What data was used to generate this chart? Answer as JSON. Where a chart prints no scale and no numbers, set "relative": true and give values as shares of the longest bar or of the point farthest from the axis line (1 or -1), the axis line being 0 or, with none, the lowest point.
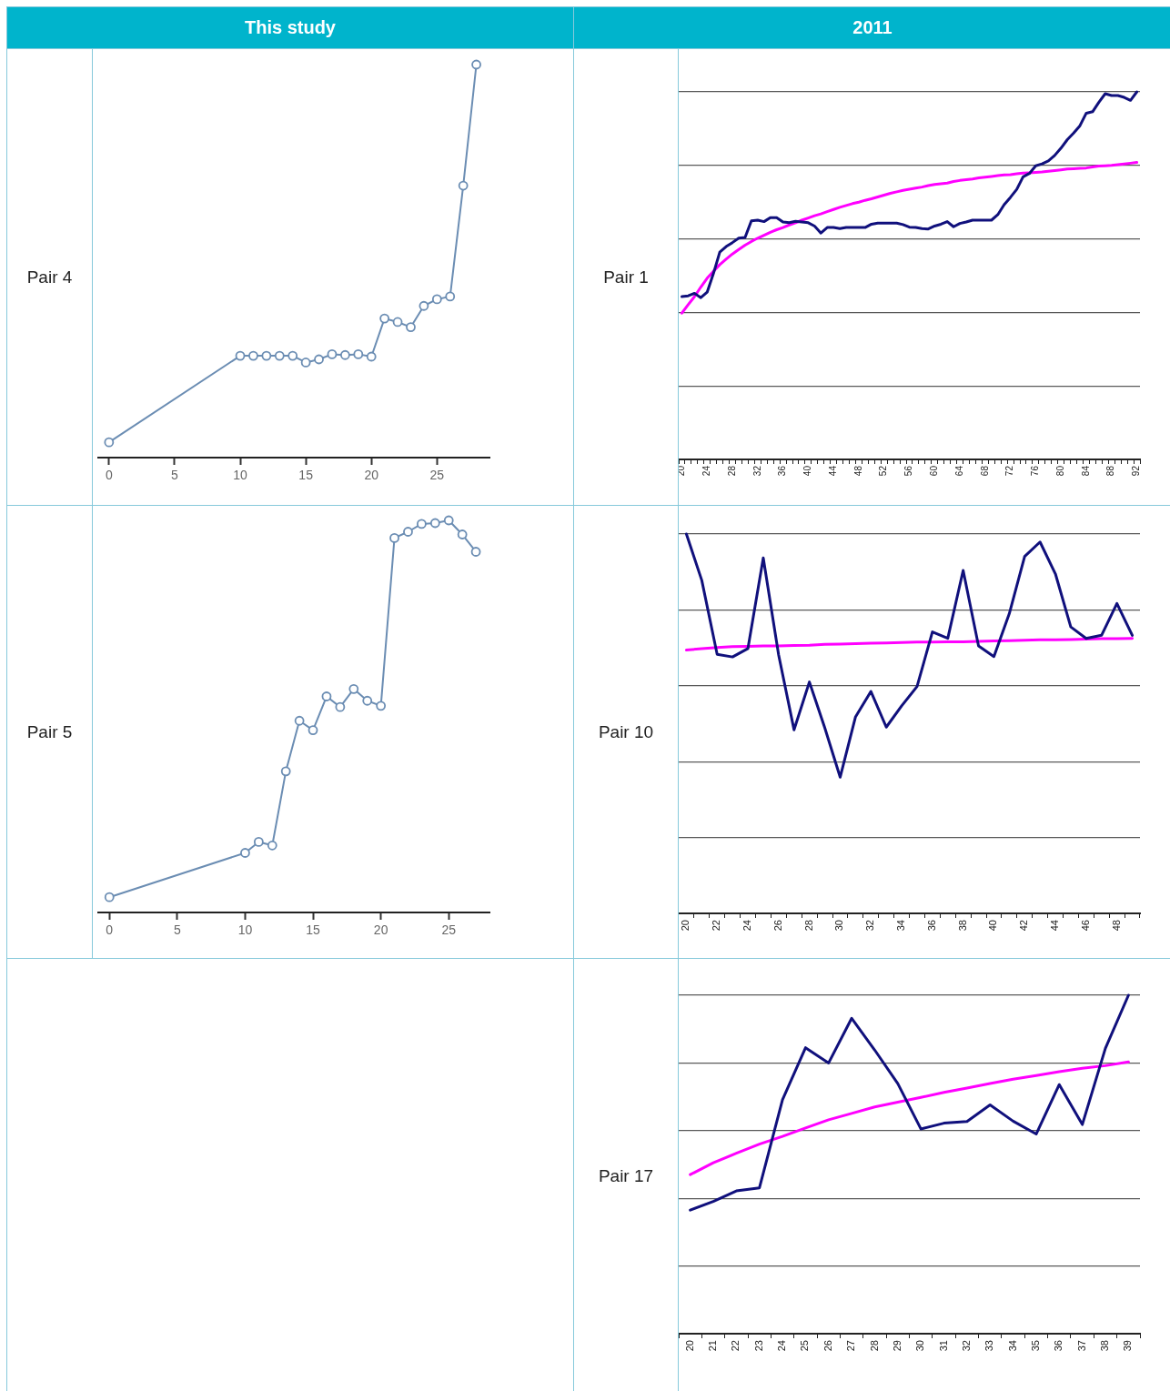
{
  "chart_data": [
    {
      "type": "other",
      "title": "This study"
    },
    {
      "type": "other",
      "title": "2011"
    },
    {
      "type": "line",
      "title": "Pair 4",
      "x": [
        0,
        10,
        11,
        12,
        13,
        14,
        15,
        16,
        17,
        18,
        19,
        20,
        21,
        22,
        23,
        24,
        25,
        26,
        27,
        28
      ],
      "values": [
        0.039,
        0.259,
        0.259,
        0.259,
        0.259,
        0.259,
        0.242,
        0.25,
        0.263,
        0.261,
        0.263,
        0.257,
        0.354,
        0.345,
        0.332,
        0.386,
        0.403,
        0.41,
        0.692,
        1
      ],
      "color": "#6b8db3",
      "relative": true,
      "marker": "circle",
      "xlim": [
        -0.8,
        29
      ],
      "xticks": [
        0,
        5,
        10,
        15,
        20,
        25
      ]
    },
    {
      "type": "line",
      "title": "Pair 1",
      "categories": [
        "20",
        null,
        null,
        null,
        "24",
        null,
        null,
        null,
        "28",
        null,
        null,
        null,
        "32",
        null,
        null,
        null,
        "36",
        null,
        null,
        null,
        "40",
        null,
        null,
        null,
        "44",
        null,
        null,
        null,
        "48",
        null,
        null,
        null,
        "52",
        null,
        null,
        null,
        "56",
        null,
        null,
        null,
        "60",
        null,
        null,
        null,
        "64",
        null,
        null,
        null,
        "68",
        null,
        null,
        null,
        "72",
        null,
        null,
        null,
        "76",
        null,
        null,
        null,
        "80",
        null,
        null,
        null,
        "84",
        null,
        null,
        null,
        "88",
        null,
        null,
        null,
        "92"
      ],
      "series": [
        {
          "color": "#10107c",
          "values": [
            0.443,
            0.445,
            0.452,
            0.44,
            0.455,
            0.506,
            0.564,
            0.579,
            0.59,
            0.602,
            0.604,
            0.649,
            0.651,
            0.647,
            0.658,
            0.658,
            0.646,
            0.644,
            0.648,
            0.646,
            0.644,
            0.635,
            0.616,
            0.631,
            0.631,
            0.628,
            0.631,
            0.631,
            0.631,
            0.631,
            0.64,
            0.643,
            0.643,
            0.643,
            0.643,
            0.639,
            0.632,
            0.631,
            0.628,
            0.627,
            0.635,
            0.64,
            0.647,
            0.633,
            0.642,
            0.646,
            0.651,
            0.651,
            0.651,
            0.651,
            0.666,
            0.693,
            0.713,
            0.735,
            0.769,
            0.778,
            0.799,
            0.804,
            0.812,
            0.827,
            0.847,
            0.87,
            0.888,
            0.908,
            0.942,
            0.946,
            0.972,
            0.995,
            0.99,
            0.99,
            0.985,
            0.977,
            1
          ]
        },
        {
          "color": "#ff00ff",
          "values": [
            0.398,
            0.421,
            0.443,
            0.469,
            0.493,
            0.512,
            0.53,
            0.545,
            0.559,
            0.571,
            0.583,
            0.593,
            0.602,
            0.61,
            0.618,
            0.625,
            0.631,
            0.638,
            0.644,
            0.651,
            0.657,
            0.663,
            0.668,
            0.674,
            0.68,
            0.686,
            0.691,
            0.696,
            0.7,
            0.705,
            0.709,
            0.714,
            0.719,
            0.724,
            0.728,
            0.732,
            0.735,
            0.738,
            0.741,
            0.745,
            0.748,
            0.75,
            0.752,
            0.756,
            0.759,
            0.761,
            0.763,
            0.766,
            0.768,
            0.77,
            0.772,
            0.774,
            0.775,
            0.777,
            0.779,
            0.78,
            0.781,
            0.782,
            0.784,
            0.786,
            0.788,
            0.79,
            0.791,
            0.792,
            0.793,
            0.796,
            0.798,
            0.799,
            0.8,
            0.802,
            0.804,
            0.806,
            0.808
          ]
        }
      ],
      "relative": true,
      "grid": "y"
    },
    {
      "type": "line",
      "title": "Pair 5",
      "x": [
        0,
        10,
        11,
        12,
        13,
        14,
        15,
        16,
        17,
        18,
        19,
        20,
        21,
        22,
        23,
        24,
        25,
        26,
        27
      ],
      "values": [
        0.039,
        0.152,
        0.18,
        0.171,
        0.36,
        0.489,
        0.465,
        0.551,
        0.524,
        0.57,
        0.54,
        0.527,
        0.955,
        0.971,
        0.991,
        0.993,
        1,
        0.964,
        0.92
      ],
      "color": "#6b8db3",
      "relative": true,
      "marker": "circle",
      "xlim": [
        -0.8,
        28
      ],
      "xticks": [
        0,
        5,
        10,
        15,
        20,
        25
      ]
    },
    {
      "type": "line",
      "title": "Pair 10",
      "categories": [
        "20",
        null,
        "22",
        null,
        "24",
        null,
        "26",
        null,
        "28",
        null,
        "30",
        null,
        "32",
        null,
        "34",
        null,
        "36",
        null,
        "38",
        null,
        "40",
        null,
        "42",
        null,
        "44",
        null,
        "46",
        null,
        "48",
        null
      ],
      "series": [
        {
          "color": "#10107c",
          "values": [
            1,
            0.878,
            0.683,
            0.676,
            0.698,
            0.937,
            0.681,
            0.484,
            0.61,
            0.489,
            0.359,
            0.518,
            0.585,
            0.491,
            0.547,
            0.598,
            0.742,
            0.725,
            0.904,
            0.705,
            0.677,
            0.79,
            0.941,
            0.979,
            0.895,
            0.755,
            0.725,
            0.733,
            0.817,
            0.733
          ]
        },
        {
          "color": "#ff00ff",
          "values": [
            0.694,
            0.698,
            0.701,
            0.703,
            0.704,
            0.705,
            0.705,
            0.706,
            0.707,
            0.709,
            0.71,
            0.711,
            0.712,
            0.713,
            0.714,
            0.715,
            0.715,
            0.716,
            0.716,
            0.717,
            0.718,
            0.719,
            0.72,
            0.721,
            0.721,
            0.722,
            0.723,
            0.724,
            0.724,
            0.725
          ]
        }
      ],
      "relative": true,
      "grid": "y"
    },
    {
      "type": "line",
      "title": "Pair 17",
      "categories": [
        "20",
        "21",
        "22",
        "23",
        "24",
        "25",
        "26",
        "27",
        "28",
        "29",
        "30",
        "31",
        "32",
        "33",
        "34",
        "35",
        "36",
        "37",
        "38",
        "39"
      ],
      "series": [
        {
          "color": "#10107c",
          "values": [
            0.365,
            0.391,
            0.422,
            0.431,
            0.691,
            0.845,
            0.8,
            0.932,
            0.838,
            0.739,
            0.605,
            0.622,
            0.627,
            0.676,
            0.628,
            0.59,
            0.736,
            0.618,
            0.843,
            1
          ]
        },
        {
          "color": "#ff00ff",
          "values": [
            0.47,
            0.505,
            0.533,
            0.56,
            0.583,
            0.608,
            0.632,
            0.651,
            0.67,
            0.684,
            0.698,
            0.713,
            0.726,
            0.739,
            0.752,
            0.763,
            0.774,
            0.784,
            0.792,
            0.803
          ]
        }
      ],
      "relative": true,
      "grid": "y"
    }
  ]
}
